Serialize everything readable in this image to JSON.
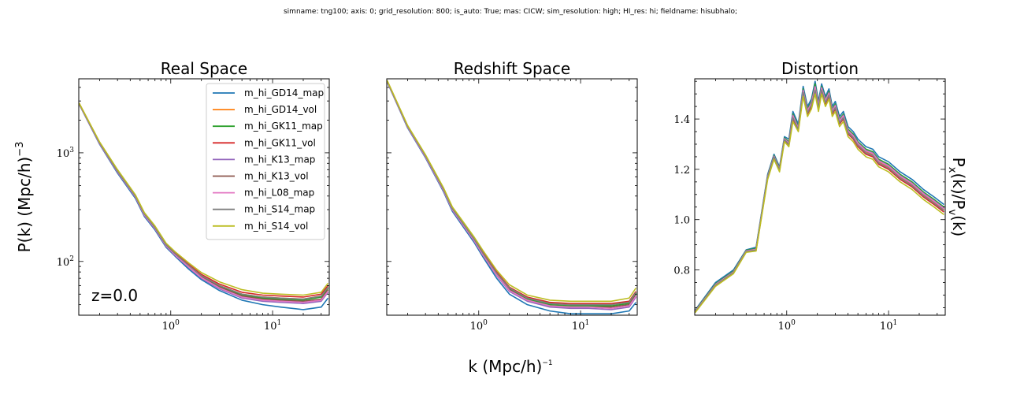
{
  "figure": {
    "suptitle": "simname: tng100; axis: 0; grid_resolution: 800; is_auto: True; mas: CICW; sim_resolution: high; HI_res: hi; fieldname: hisubhalo;",
    "shared_xlabel": "k (Mpc/h)⁻¹",
    "shared_xlabel_base": "k (Mpc/h)",
    "shared_xlabel_sup": "−1",
    "series_names": [
      "m_hi_GD14_map",
      "m_hi_GD14_vol",
      "m_hi_GK11_map",
      "m_hi_GK11_vol",
      "m_hi_K13_map",
      "m_hi_K13_vol",
      "m_hi_L08_map",
      "m_hi_S14_map",
      "m_hi_S14_vol"
    ],
    "series_colors": [
      "#1f77b4",
      "#ff7f0e",
      "#2ca02c",
      "#d62728",
      "#9467bd",
      "#8c564b",
      "#e377c2",
      "#7f7f7f",
      "#bcbd22"
    ]
  },
  "chart_data": [
    {
      "type": "line",
      "title": "Real Space",
      "ylabel": "P(k) (Mpc/h)⁻³",
      "ylabel_base": "P(k) (Mpc/h)",
      "ylabel_sup": "−3",
      "xscale": "log",
      "yscale": "log",
      "xlim": [
        0.125,
        36
      ],
      "ylim": [
        32,
        4800
      ],
      "xtick_labels": [
        {
          "value": 1,
          "base": "10",
          "exp": "0"
        },
        {
          "value": 10,
          "base": "10",
          "exp": "1"
        }
      ],
      "ytick_labels": [
        {
          "value": 100,
          "base": "10",
          "exp": "2"
        },
        {
          "value": 1000,
          "base": "10",
          "exp": "3"
        }
      ],
      "annotation": "z=0.0",
      "legend_position": "upper right",
      "grid": false,
      "x": [
        0.126,
        0.2,
        0.3,
        0.45,
        0.55,
        0.7,
        0.9,
        1.1,
        1.5,
        2,
        3,
        5,
        8,
        12,
        20,
        30,
        35
      ],
      "series": [
        {
          "name": "m_hi_GD14_map",
          "values": [
            2800,
            1200,
            650,
            380,
            260,
            195,
            135,
            112,
            85,
            68,
            54,
            44,
            40,
            38,
            36,
            38,
            46
          ]
        },
        {
          "name": "m_hi_GD14_vol",
          "values": [
            2850,
            1240,
            680,
            400,
            275,
            205,
            142,
            118,
            92,
            74,
            60,
            50,
            47,
            46,
            45,
            48,
            58
          ]
        },
        {
          "name": "m_hi_GK11_map",
          "values": [
            2840,
            1230,
            675,
            398,
            272,
            204,
            141,
            117,
            91,
            73,
            59,
            49,
            46,
            45,
            44,
            47,
            57
          ]
        },
        {
          "name": "m_hi_GK11_vol",
          "values": [
            2860,
            1250,
            690,
            405,
            278,
            208,
            144,
            120,
            94,
            76,
            62,
            52,
            49,
            48,
            47,
            50,
            60
          ]
        },
        {
          "name": "m_hi_K13_map",
          "values": [
            2820,
            1215,
            665,
            390,
            266,
            200,
            138,
            114,
            88,
            70,
            56,
            46,
            43,
            42,
            41,
            43,
            52
          ]
        },
        {
          "name": "m_hi_K13_vol",
          "values": [
            2830,
            1225,
            670,
            395,
            270,
            202,
            140,
            116,
            90,
            72,
            58,
            48,
            45,
            44,
            43,
            45,
            55
          ]
        },
        {
          "name": "m_hi_L08_map",
          "values": [
            2825,
            1220,
            668,
            393,
            268,
            201,
            139,
            115,
            89,
            71,
            57,
            47,
            44,
            43,
            42,
            44,
            53
          ]
        },
        {
          "name": "m_hi_S14_map",
          "values": [
            2845,
            1235,
            678,
            400,
            274,
            205,
            142,
            118,
            92,
            74,
            60,
            50,
            47,
            46,
            45,
            48,
            58
          ]
        },
        {
          "name": "m_hi_S14_vol",
          "values": [
            2870,
            1260,
            700,
            410,
            282,
            212,
            147,
            123,
            97,
            79,
            65,
            55,
            51,
            50,
            49,
            52,
            63
          ]
        }
      ]
    },
    {
      "type": "line",
      "title": "Redshift Space",
      "xscale": "log",
      "yscale": "log",
      "xlim": [
        0.125,
        36
      ],
      "ylim": [
        32,
        4800
      ],
      "xtick_labels": [
        {
          "value": 1,
          "base": "10",
          "exp": "0"
        },
        {
          "value": 10,
          "base": "10",
          "exp": "1"
        }
      ],
      "grid": false,
      "x": [
        0.126,
        0.2,
        0.3,
        0.45,
        0.55,
        0.7,
        0.9,
        1.1,
        1.5,
        2,
        3,
        5,
        8,
        12,
        20,
        30,
        35
      ],
      "series": [
        {
          "name": "m_hi_GD14_map",
          "values": [
            4500,
            1700,
            900,
            440,
            290,
            210,
            150,
            110,
            70,
            50,
            40,
            35,
            33,
            33,
            33,
            35,
            42
          ]
        },
        {
          "name": "m_hi_GD14_vol",
          "values": [
            4600,
            1760,
            940,
            465,
            308,
            225,
            162,
            120,
            78,
            57,
            46,
            41,
            40,
            40,
            40,
            42,
            52
          ]
        },
        {
          "name": "m_hi_GK11_map",
          "values": [
            4580,
            1750,
            935,
            462,
            306,
            223,
            160,
            118,
            77,
            56,
            45,
            40,
            39,
            39,
            39,
            41,
            51
          ]
        },
        {
          "name": "m_hi_GK11_vol",
          "values": [
            4620,
            1770,
            948,
            470,
            312,
            228,
            164,
            122,
            80,
            58,
            47,
            42,
            41,
            41,
            41,
            43,
            53
          ]
        },
        {
          "name": "m_hi_K13_map",
          "values": [
            4540,
            1725,
            915,
            450,
            298,
            216,
            155,
            114,
            74,
            53,
            43,
            38,
            37,
            37,
            36,
            38,
            47
          ]
        },
        {
          "name": "m_hi_K13_vol",
          "values": [
            4560,
            1735,
            925,
            455,
            302,
            220,
            157,
            116,
            75,
            55,
            44,
            39,
            38,
            38,
            38,
            40,
            49
          ]
        },
        {
          "name": "m_hi_L08_map",
          "values": [
            4550,
            1730,
            920,
            452,
            300,
            218,
            156,
            115,
            75,
            54,
            44,
            39,
            38,
            38,
            37,
            39,
            48
          ]
        },
        {
          "name": "m_hi_S14_map",
          "values": [
            4590,
            1755,
            938,
            463,
            307,
            224,
            161,
            119,
            78,
            57,
            46,
            41,
            40,
            40,
            40,
            42,
            52
          ]
        },
        {
          "name": "m_hi_S14_vol",
          "values": [
            4650,
            1790,
            960,
            478,
            318,
            233,
            168,
            126,
            83,
            61,
            49,
            44,
            43,
            43,
            43,
            46,
            57
          ]
        }
      ]
    },
    {
      "type": "line",
      "title": "Distortion",
      "ylabel": "Pₓ(k)/Pᵥ(k)",
      "ylabel_parts": [
        {
          "text": "P",
          "sub": "x"
        },
        {
          "text": "(k)/P",
          "sub": "v"
        },
        {
          "text": "(k)",
          "sub": ""
        }
      ],
      "xscale": "log",
      "yscale": "linear",
      "xlim": [
        0.125,
        36
      ],
      "ylim": [
        0.62,
        1.56
      ],
      "xtick_labels": [
        {
          "value": 1,
          "base": "10",
          "exp": "0"
        },
        {
          "value": 10,
          "base": "10",
          "exp": "1"
        }
      ],
      "yticks": [
        0.8,
        1.0,
        1.2,
        1.4
      ],
      "ytick_labels": [
        "0.8",
        "1.0",
        "1.2",
        "1.4"
      ],
      "grid": false,
      "x": [
        0.126,
        0.2,
        0.3,
        0.4,
        0.5,
        0.65,
        0.75,
        0.85,
        0.95,
        1.05,
        1.15,
        1.3,
        1.45,
        1.6,
        1.75,
        1.9,
        2.05,
        2.2,
        2.4,
        2.6,
        2.8,
        3.0,
        3.3,
        3.6,
        4,
        4.5,
        5,
        6,
        7,
        8,
        10,
        13,
        17,
        22,
        28,
        35
      ],
      "series": [
        {
          "name": "m_hi_GD14_map",
          "values": [
            0.64,
            0.75,
            0.8,
            0.88,
            0.89,
            1.18,
            1.26,
            1.21,
            1.33,
            1.32,
            1.43,
            1.38,
            1.53,
            1.45,
            1.48,
            1.55,
            1.47,
            1.54,
            1.49,
            1.52,
            1.45,
            1.47,
            1.41,
            1.43,
            1.37,
            1.35,
            1.32,
            1.29,
            1.28,
            1.25,
            1.23,
            1.19,
            1.16,
            1.12,
            1.09,
            1.06
          ]
        },
        {
          "name": "m_hi_GD14_vol",
          "values": [
            0.635,
            0.74,
            0.79,
            0.875,
            0.88,
            1.17,
            1.25,
            1.2,
            1.32,
            1.3,
            1.41,
            1.36,
            1.51,
            1.43,
            1.46,
            1.52,
            1.45,
            1.52,
            1.47,
            1.5,
            1.43,
            1.45,
            1.39,
            1.41,
            1.35,
            1.33,
            1.3,
            1.27,
            1.26,
            1.23,
            1.21,
            1.17,
            1.14,
            1.1,
            1.07,
            1.04
          ]
        },
        {
          "name": "m_hi_GK11_map",
          "values": [
            0.638,
            0.745,
            0.795,
            0.878,
            0.885,
            1.175,
            1.255,
            1.205,
            1.325,
            1.31,
            1.42,
            1.37,
            1.52,
            1.44,
            1.47,
            1.54,
            1.46,
            1.53,
            1.48,
            1.51,
            1.44,
            1.46,
            1.4,
            1.42,
            1.36,
            1.34,
            1.31,
            1.28,
            1.27,
            1.24,
            1.22,
            1.18,
            1.15,
            1.11,
            1.08,
            1.05
          ]
        },
        {
          "name": "m_hi_GK11_vol",
          "values": [
            0.632,
            0.738,
            0.788,
            0.872,
            0.878,
            1.165,
            1.245,
            1.195,
            1.315,
            1.295,
            1.4,
            1.355,
            1.5,
            1.42,
            1.45,
            1.51,
            1.44,
            1.51,
            1.46,
            1.49,
            1.42,
            1.44,
            1.38,
            1.4,
            1.34,
            1.32,
            1.29,
            1.26,
            1.25,
            1.22,
            1.2,
            1.16,
            1.13,
            1.09,
            1.06,
            1.03
          ]
        },
        {
          "name": "m_hi_K13_map",
          "values": [
            0.636,
            0.742,
            0.792,
            0.876,
            0.882,
            1.172,
            1.252,
            1.202,
            1.322,
            1.305,
            1.415,
            1.365,
            1.515,
            1.435,
            1.465,
            1.53,
            1.455,
            1.525,
            1.475,
            1.505,
            1.435,
            1.455,
            1.395,
            1.415,
            1.355,
            1.335,
            1.305,
            1.275,
            1.265,
            1.235,
            1.215,
            1.175,
            1.145,
            1.105,
            1.075,
            1.045
          ]
        },
        {
          "name": "m_hi_K13_vol",
          "values": [
            0.634,
            0.741,
            0.791,
            0.874,
            0.881,
            1.17,
            1.25,
            1.2,
            1.32,
            1.302,
            1.412,
            1.362,
            1.512,
            1.432,
            1.462,
            1.525,
            1.452,
            1.522,
            1.472,
            1.502,
            1.432,
            1.452,
            1.392,
            1.412,
            1.352,
            1.332,
            1.302,
            1.272,
            1.262,
            1.232,
            1.212,
            1.172,
            1.142,
            1.102,
            1.072,
            1.042
          ]
        },
        {
          "name": "m_hi_L08_map",
          "values": [
            0.635,
            0.742,
            0.792,
            0.875,
            0.882,
            1.171,
            1.251,
            1.201,
            1.321,
            1.303,
            1.413,
            1.363,
            1.513,
            1.433,
            1.463,
            1.527,
            1.453,
            1.523,
            1.473,
            1.503,
            1.433,
            1.453,
            1.393,
            1.413,
            1.353,
            1.333,
            1.303,
            1.273,
            1.263,
            1.233,
            1.213,
            1.173,
            1.143,
            1.103,
            1.073,
            1.043
          ]
        },
        {
          "name": "m_hi_S14_map",
          "values": [
            0.633,
            0.739,
            0.789,
            0.873,
            0.879,
            1.168,
            1.248,
            1.198,
            1.318,
            1.298,
            1.405,
            1.358,
            1.505,
            1.425,
            1.455,
            1.515,
            1.445,
            1.515,
            1.465,
            1.495,
            1.425,
            1.445,
            1.385,
            1.405,
            1.345,
            1.325,
            1.295,
            1.265,
            1.255,
            1.225,
            1.205,
            1.165,
            1.135,
            1.095,
            1.065,
            1.035
          ]
        },
        {
          "name": "m_hi_S14_vol",
          "values": [
            0.63,
            0.735,
            0.785,
            0.87,
            0.875,
            1.16,
            1.24,
            1.19,
            1.31,
            1.29,
            1.39,
            1.35,
            1.49,
            1.41,
            1.44,
            1.5,
            1.43,
            1.5,
            1.45,
            1.48,
            1.41,
            1.43,
            1.37,
            1.39,
            1.33,
            1.31,
            1.28,
            1.25,
            1.24,
            1.21,
            1.19,
            1.15,
            1.12,
            1.08,
            1.05,
            1.02
          ]
        }
      ]
    }
  ]
}
